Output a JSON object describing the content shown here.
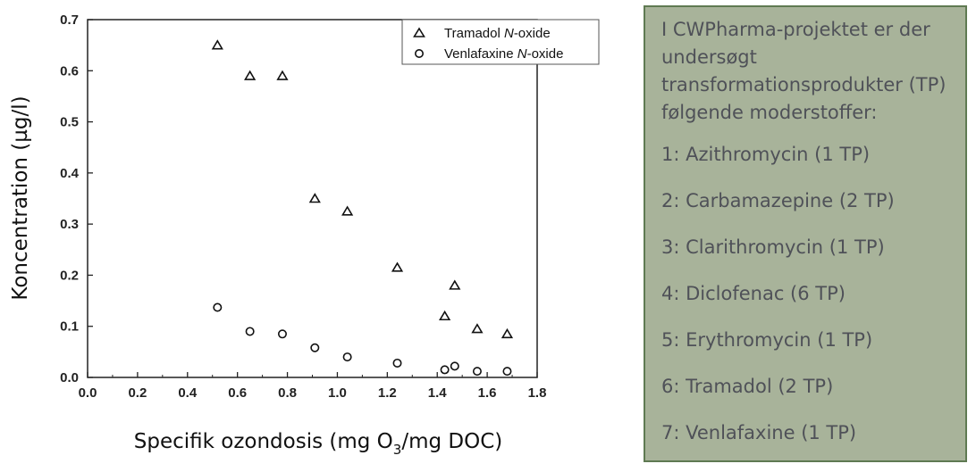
{
  "chart_data": {
    "type": "scatter",
    "xlabel_pre": "Specifik ozondosis (mg O",
    "xlabel_sub": "3",
    "xlabel_post": "/mg DOC)",
    "ylabel": "Koncentration (µg/l)",
    "xlim": [
      0.0,
      1.8
    ],
    "ylim": [
      0.0,
      0.7
    ],
    "x_ticks": [
      "0.0",
      "0.2",
      "0.4",
      "0.6",
      "0.8",
      "1.0",
      "1.2",
      "1.4",
      "1.6",
      "1.8"
    ],
    "y_ticks": [
      "0.0",
      "0.1",
      "0.2",
      "0.3",
      "0.4",
      "0.5",
      "0.6",
      "0.7"
    ],
    "legend_position": "top-right",
    "series": [
      {
        "name_pre": "Tramadol ",
        "name_italic": "N",
        "name_post": "-oxide",
        "marker": "triangle",
        "x": [
          0.52,
          0.65,
          0.78,
          0.91,
          1.04,
          1.24,
          1.43,
          1.47,
          1.56,
          1.68
        ],
        "y": [
          0.65,
          0.59,
          0.59,
          0.35,
          0.325,
          0.215,
          0.12,
          0.18,
          0.095,
          0.085
        ]
      },
      {
        "name_pre": "Venlafaxine ",
        "name_italic": "N",
        "name_post": "-oxide",
        "marker": "circle",
        "x": [
          0.52,
          0.65,
          0.78,
          0.91,
          1.04,
          1.24,
          1.43,
          1.47,
          1.56,
          1.68
        ],
        "y": [
          0.137,
          0.09,
          0.085,
          0.058,
          0.04,
          0.028,
          0.015,
          0.022,
          0.012,
          0.012
        ]
      }
    ]
  },
  "info": {
    "intro": "I CWPharma-projektet er der undersøgt transformationsprodukter (TP) følgende moderstoffer:",
    "items": [
      "1: Azithromycin (1 TP)",
      "2: Carbamazepine (2 TP)",
      "3: Clarithromycin (1 TP)",
      "4: Diclofenac (6 TP)",
      "5: Erythromycin (1 TP)",
      "6: Tramadol (2 TP)",
      "7: Venlafaxine (1 TP)"
    ]
  }
}
